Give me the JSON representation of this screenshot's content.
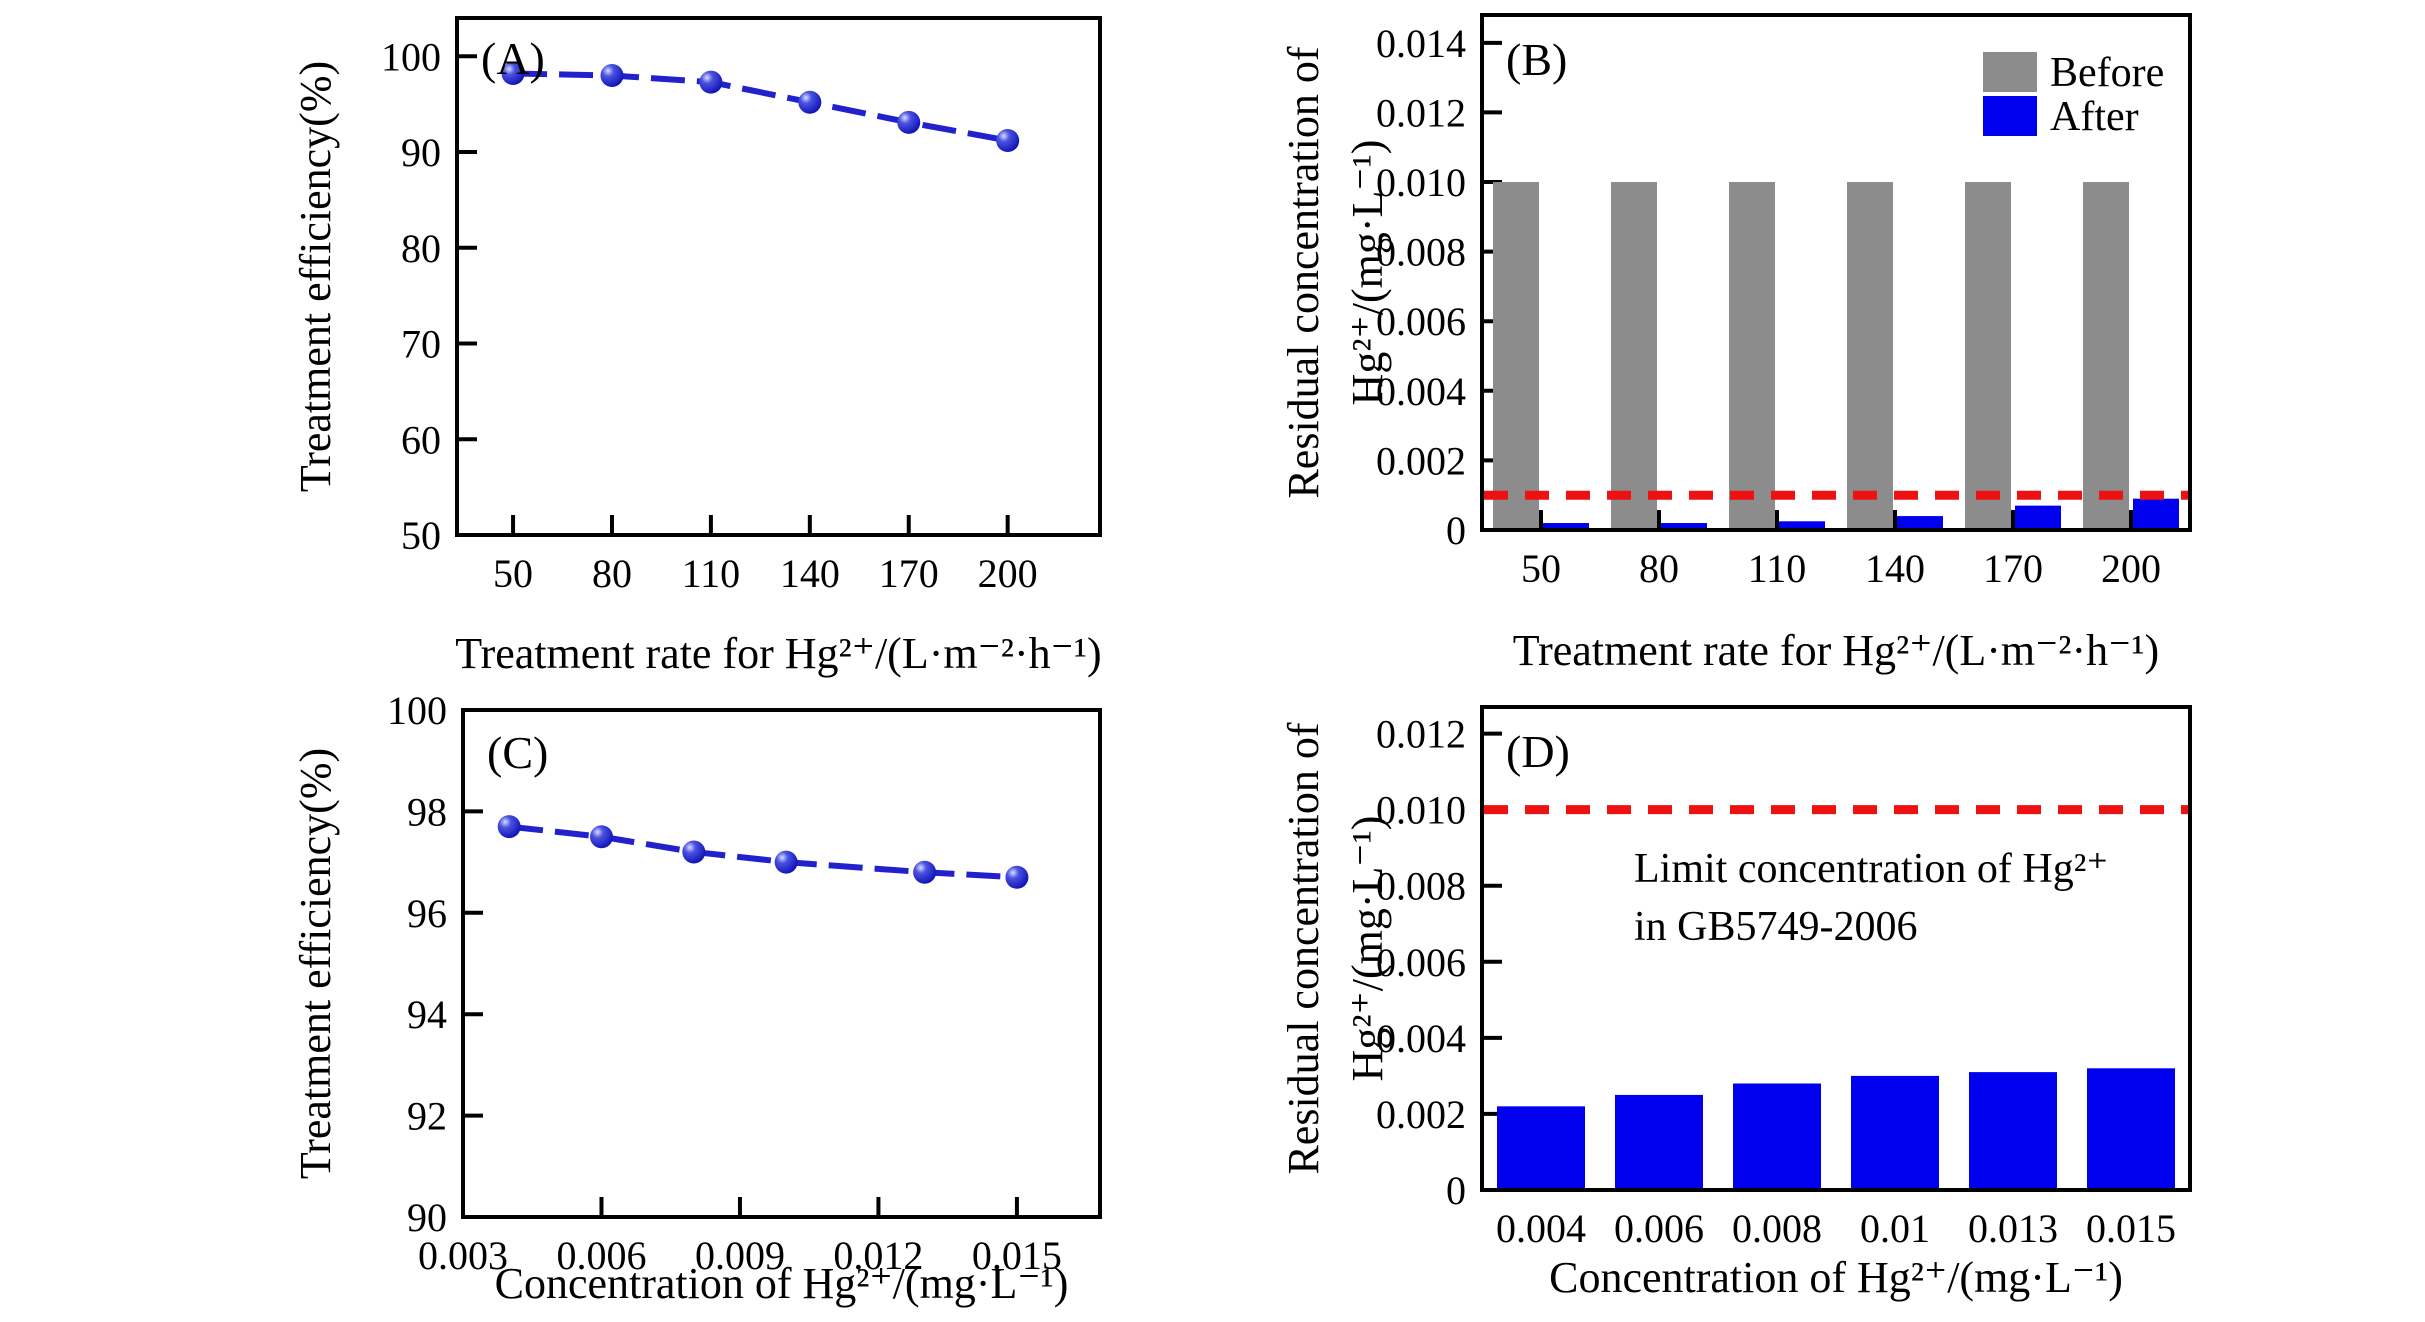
{
  "figure_title": "",
  "chart_data": [
    {
      "id": "A",
      "panel_label": "(A)",
      "type": "line",
      "xlabel": "Treatment rate for Hg²⁺/(L·m⁻²·h⁻¹)",
      "ylabel_lines": [
        "Treatment efficiency(%)"
      ],
      "xlim": [
        33,
        228
      ],
      "ylim": [
        50,
        104
      ],
      "grid": false,
      "xtick_values": [
        50,
        80,
        110,
        140,
        170,
        200
      ],
      "xtick_labels": [
        "50",
        "80",
        "110",
        "140",
        "170",
        "200"
      ],
      "ytick_values": [
        50,
        60,
        70,
        80,
        90,
        100
      ],
      "ytick_labels": [
        "50",
        "60",
        "70",
        "80",
        "90",
        "100"
      ],
      "x": [
        50,
        80,
        110,
        140,
        170,
        200
      ],
      "y": [
        98.2,
        98.0,
        97.3,
        95.2,
        93.1,
        91.2
      ],
      "line_color": "#2222cc"
    },
    {
      "id": "B",
      "panel_label": "(B)",
      "type": "grouped-bar",
      "xlabel": "Treatment rate for Hg²⁺/(L·m⁻²·h⁻¹)",
      "ylabel_lines": [
        "Residual concentration of",
        "Hg²⁺/(mg·L⁻¹)"
      ],
      "ylim": [
        0,
        0.0148
      ],
      "grid": false,
      "categories": [
        "50",
        "80",
        "110",
        "140",
        "170",
        "200"
      ],
      "ytick_values": [
        0,
        0.002,
        0.004,
        0.006,
        0.008,
        0.01,
        0.012,
        0.014
      ],
      "ytick_labels": [
        "0",
        "0.002",
        "0.004",
        "0.006",
        "0.008",
        "0.010",
        "0.012",
        "0.014"
      ],
      "series": [
        {
          "name": "Before",
          "color": "#8c8c8c",
          "values": [
            0.01,
            0.01,
            0.01,
            0.01,
            0.01,
            0.01
          ]
        },
        {
          "name": "After",
          "color": "#0000ee",
          "values": [
            0.0002,
            0.0002,
            0.00025,
            0.0004,
            0.0007,
            0.0009
          ]
        }
      ],
      "refline": {
        "value": 0.001,
        "color": "#ee1111",
        "style": "dashed"
      },
      "legend": {
        "position": "top-right"
      }
    },
    {
      "id": "C",
      "panel_label": "(C)",
      "type": "line",
      "xlabel": "Concentration of Hg²⁺/(mg·L⁻¹)",
      "ylabel_lines": [
        "Treatment efficiency(%)"
      ],
      "xlim": [
        0.003,
        0.0168
      ],
      "ylim": [
        90,
        100
      ],
      "grid": false,
      "xtick_values": [
        0.003,
        0.006,
        0.009,
        0.012,
        0.015
      ],
      "xtick_labels": [
        "0.003",
        "0.006",
        "0.009",
        "0.012",
        "0.015"
      ],
      "ytick_values": [
        90,
        92,
        94,
        96,
        98,
        100
      ],
      "ytick_labels": [
        "90",
        "92",
        "94",
        "96",
        "98",
        "100"
      ],
      "x": [
        0.004,
        0.006,
        0.008,
        0.01,
        0.013,
        0.015
      ],
      "y": [
        97.7,
        97.5,
        97.2,
        97.0,
        96.8,
        96.7
      ],
      "line_color": "#2222cc"
    },
    {
      "id": "D",
      "panel_label": "(D)",
      "type": "bar",
      "xlabel": "Concentration of Hg²⁺/(mg·L⁻¹)",
      "ylabel_lines": [
        "Residual concentration of",
        "Hg²⁺/(mg·L⁻¹)"
      ],
      "ylim": [
        0,
        0.0127
      ],
      "grid": false,
      "categories": [
        "0.004",
        "0.006",
        "0.008",
        "0.01",
        "0.013",
        "0.015"
      ],
      "ytick_values": [
        0,
        0.002,
        0.004,
        0.006,
        0.008,
        0.01,
        0.012
      ],
      "ytick_labels": [
        "0",
        "0.002",
        "0.004",
        "0.006",
        "0.008",
        "0.010",
        "0.012"
      ],
      "values": [
        0.0022,
        0.0025,
        0.0028,
        0.003,
        0.0031,
        0.0032
      ],
      "bar_color": "#0000ee",
      "refline": {
        "value": 0.01,
        "color": "#ee1111",
        "style": "dashed"
      },
      "annotation_lines": [
        "Limit concentration of Hg²⁺",
        "in GB5749-2006"
      ]
    }
  ],
  "colors": {
    "axis": "#000000",
    "line_blue": "#2222cc",
    "bar_gray": "#8c8c8c",
    "bar_blue": "#0000ee",
    "limit_red": "#ee1111",
    "background": "#ffffff"
  }
}
